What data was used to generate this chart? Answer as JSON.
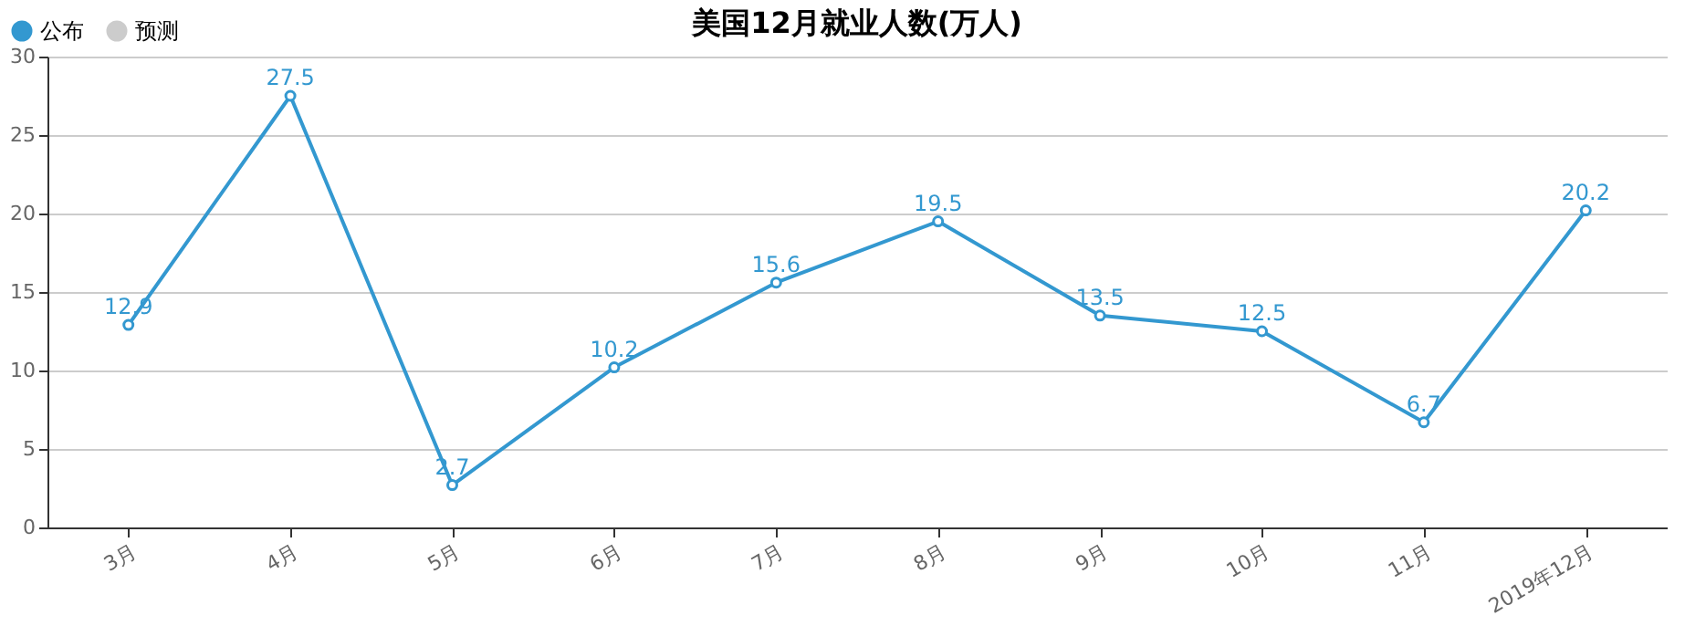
{
  "chart_data": {
    "type": "line",
    "title": "美国12月就业人数(万人)",
    "categories": [
      "3月",
      "4月",
      "5月",
      "6月",
      "7月",
      "8月",
      "9月",
      "10月",
      "11月",
      "2019年12月"
    ],
    "series": [
      {
        "name": "公布",
        "color": "#3398d0",
        "values": [
          12.9,
          27.5,
          2.7,
          10.2,
          15.6,
          19.5,
          13.5,
          12.5,
          6.7,
          20.2
        ]
      },
      {
        "name": "预测",
        "color": "#cccccc",
        "values": [
          null,
          null,
          null,
          null,
          null,
          null,
          null,
          null,
          null,
          null
        ]
      }
    ],
    "ylim": [
      0,
      30
    ],
    "yticks": [
      0,
      5,
      10,
      15,
      20,
      25,
      30
    ],
    "grid": "y",
    "legend": "top left",
    "marker": "circle",
    "line_style": "solid",
    "data_labels": true
  }
}
